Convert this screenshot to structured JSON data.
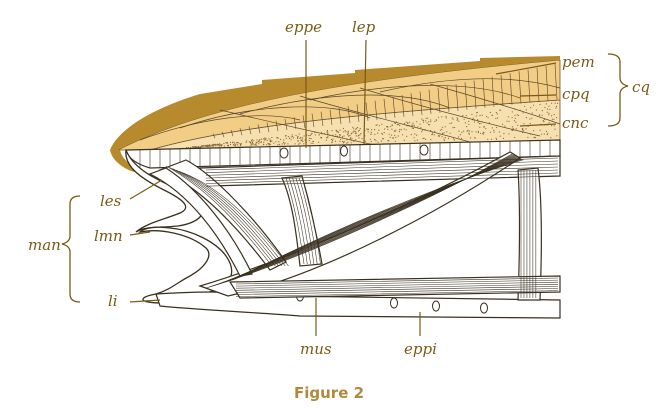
{
  "labels": {
    "eppe": "eppe",
    "lep": "lep",
    "pem": "pem",
    "cpq": "cpq",
    "cnc": "cnc",
    "cq": "cq",
    "les": "les",
    "man": "man",
    "lmn": "lmn",
    "li": "li",
    "mus": "mus",
    "eppi": "eppi"
  },
  "caption": "Figure 2",
  "colors": {
    "cuticle_dark": "#b88a2e",
    "cuticle_mid": "#f1cd86",
    "cuticle_light": "#f6e0b0",
    "ink": "#3a3020",
    "label": "#7a5a16",
    "caption": "#b08a3c"
  }
}
